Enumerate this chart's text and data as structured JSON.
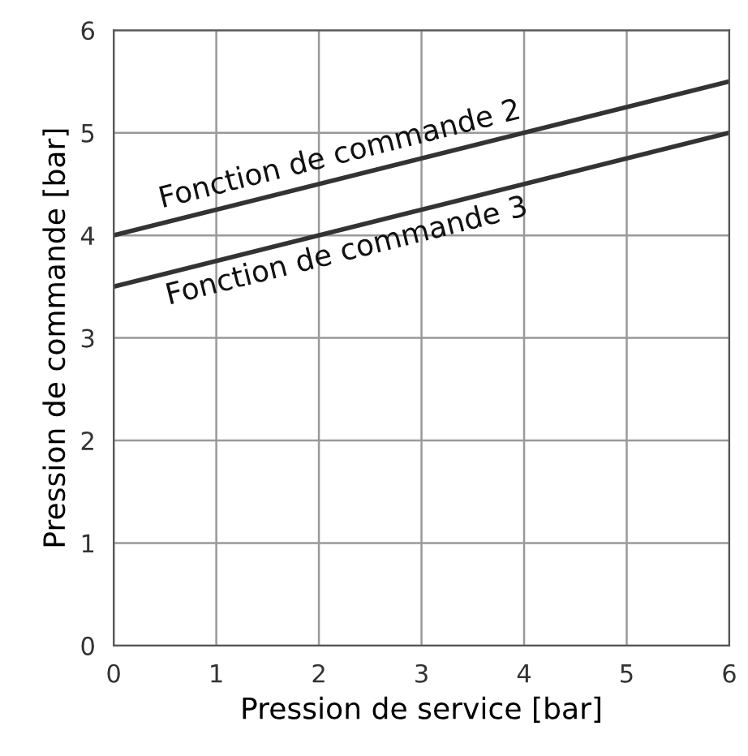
{
  "chart_data": {
    "type": "line",
    "xlabel": "Pression de service [bar]",
    "ylabel": "Pression de commande [bar]",
    "x": [
      0,
      6
    ],
    "series": [
      {
        "name": "Fonction de commande 2",
        "color": "#333333",
        "values": [
          4,
          5.5
        ]
      },
      {
        "name": "Fonction de commande 3",
        "color": "#333333",
        "values": [
          3.5,
          5
        ]
      }
    ],
    "xlim": [
      0,
      6
    ],
    "ylim": [
      0,
      6
    ],
    "xticks": [
      0,
      1,
      2,
      3,
      4,
      5,
      6
    ],
    "yticks": [
      0,
      1,
      2,
      3,
      4,
      5,
      6
    ],
    "grid": true,
    "legend": false,
    "marker": "none",
    "line_style": "solid"
  }
}
